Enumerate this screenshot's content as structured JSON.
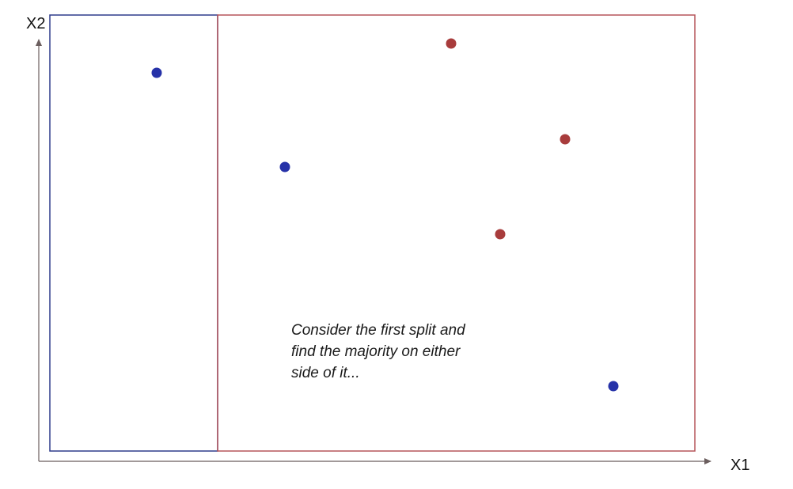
{
  "axes": {
    "x_label": "X1",
    "y_label": "X2",
    "axis_color": "#6b5e5e"
  },
  "regions": [
    {
      "name": "left-region",
      "class": "blue",
      "color": "#2e3c8c"
    },
    {
      "name": "right-region",
      "class": "red",
      "color": "#b5555a"
    }
  ],
  "points": [
    {
      "class": "blue",
      "color": "#2632a8"
    },
    {
      "class": "blue",
      "color": "#2632a8"
    },
    {
      "class": "red",
      "color": "#a83c3c"
    },
    {
      "class": "red",
      "color": "#a83c3c"
    },
    {
      "class": "red",
      "color": "#a83c3c"
    },
    {
      "class": "blue",
      "color": "#2632a8"
    }
  ],
  "annotation": {
    "line1": "Consider the first split and",
    "line2": "find the majority on either",
    "line3": "side of it..."
  }
}
